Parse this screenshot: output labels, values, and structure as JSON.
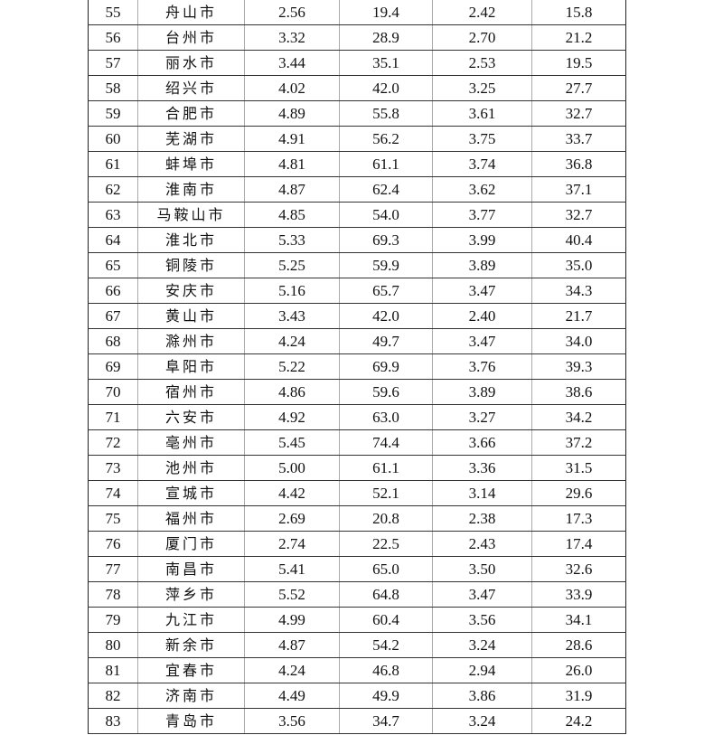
{
  "rows": [
    [
      "55",
      "舟山市",
      "2.56",
      "19.4",
      "2.42",
      "15.8"
    ],
    [
      "56",
      "台州市",
      "3.32",
      "28.9",
      "2.70",
      "21.2"
    ],
    [
      "57",
      "丽水市",
      "3.44",
      "35.1",
      "2.53",
      "19.5"
    ],
    [
      "58",
      "绍兴市",
      "4.02",
      "42.0",
      "3.25",
      "27.7"
    ],
    [
      "59",
      "合肥市",
      "4.89",
      "55.8",
      "3.61",
      "32.7"
    ],
    [
      "60",
      "芜湖市",
      "4.91",
      "56.2",
      "3.75",
      "33.7"
    ],
    [
      "61",
      "蚌埠市",
      "4.81",
      "61.1",
      "3.74",
      "36.8"
    ],
    [
      "62",
      "淮南市",
      "4.87",
      "62.4",
      "3.62",
      "37.1"
    ],
    [
      "63",
      "马鞍山市",
      "4.85",
      "54.0",
      "3.77",
      "32.7"
    ],
    [
      "64",
      "淮北市",
      "5.33",
      "69.3",
      "3.99",
      "40.4"
    ],
    [
      "65",
      "铜陵市",
      "5.25",
      "59.9",
      "3.89",
      "35.0"
    ],
    [
      "66",
      "安庆市",
      "5.16",
      "65.7",
      "3.47",
      "34.3"
    ],
    [
      "67",
      "黄山市",
      "3.43",
      "42.0",
      "2.40",
      "21.7"
    ],
    [
      "68",
      "滁州市",
      "4.24",
      "49.7",
      "3.47",
      "34.0"
    ],
    [
      "69",
      "阜阳市",
      "5.22",
      "69.9",
      "3.76",
      "39.3"
    ],
    [
      "70",
      "宿州市",
      "4.86",
      "59.6",
      "3.89",
      "38.6"
    ],
    [
      "71",
      "六安市",
      "4.92",
      "63.0",
      "3.27",
      "34.2"
    ],
    [
      "72",
      "亳州市",
      "5.45",
      "74.4",
      "3.66",
      "37.2"
    ],
    [
      "73",
      "池州市",
      "5.00",
      "61.1",
      "3.36",
      "31.5"
    ],
    [
      "74",
      "宣城市",
      "4.42",
      "52.1",
      "3.14",
      "29.6"
    ],
    [
      "75",
      "福州市",
      "2.69",
      "20.8",
      "2.38",
      "17.3"
    ],
    [
      "76",
      "厦门市",
      "2.74",
      "22.5",
      "2.43",
      "17.4"
    ],
    [
      "77",
      "南昌市",
      "5.41",
      "65.0",
      "3.50",
      "32.6"
    ],
    [
      "78",
      "萍乡市",
      "5.52",
      "64.8",
      "3.47",
      "33.9"
    ],
    [
      "79",
      "九江市",
      "4.99",
      "60.4",
      "3.56",
      "34.1"
    ],
    [
      "80",
      "新余市",
      "4.87",
      "54.2",
      "3.24",
      "28.6"
    ],
    [
      "81",
      "宜春市",
      "4.24",
      "46.8",
      "2.94",
      "26.0"
    ],
    [
      "82",
      "济南市",
      "4.49",
      "49.9",
      "3.86",
      "31.9"
    ],
    [
      "83",
      "青岛市",
      "3.56",
      "34.7",
      "3.24",
      "24.2"
    ]
  ]
}
